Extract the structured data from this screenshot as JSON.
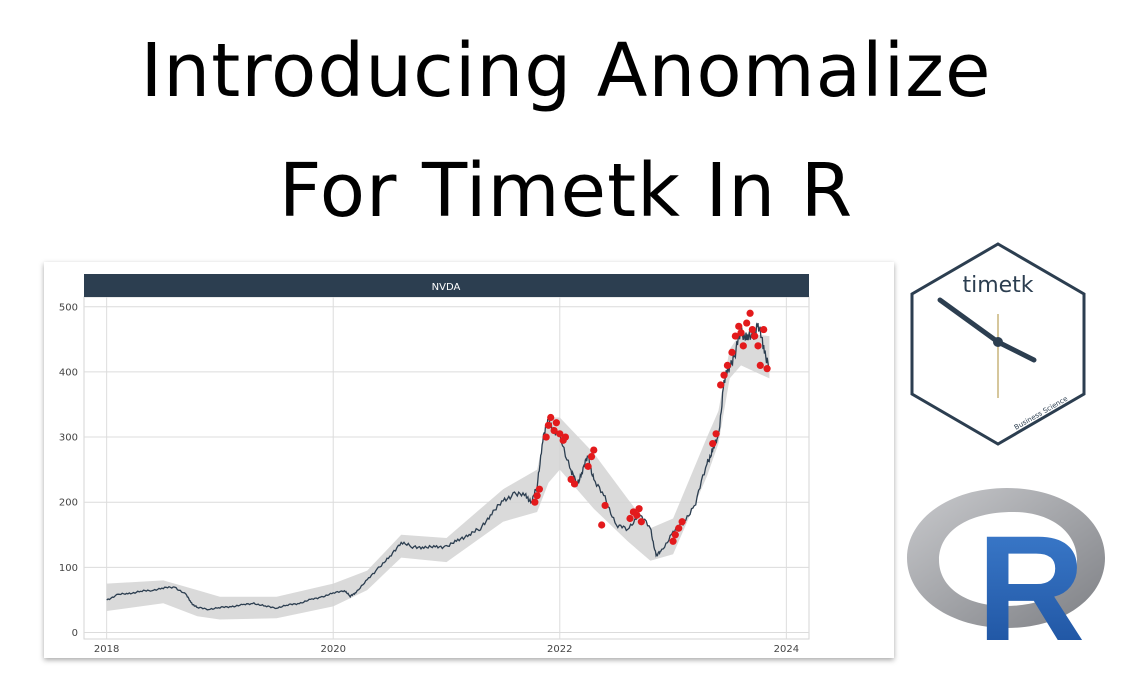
{
  "title": {
    "line1": "Introducing Anomalize",
    "line2": "For Timetk In R"
  },
  "logos": {
    "timetk_text": "timetk",
    "timetk_sub": "Business Science",
    "r_text": "R"
  },
  "colors": {
    "panel_strip": "#2c3e50",
    "line": "#2c3e50",
    "band": "#d3d3d3",
    "anomaly": "#e31a1c",
    "r_blue": "#1f5fb0",
    "r_gray": "#8e9095"
  },
  "chart_data": {
    "type": "line",
    "title": "NVDA",
    "xlabel": "",
    "ylabel": "",
    "xlim": [
      2018.0,
      2024.0
    ],
    "ylim": [
      0,
      510
    ],
    "x_ticks": [
      2018,
      2020,
      2022,
      2024
    ],
    "y_ticks": [
      0,
      100,
      200,
      300,
      400,
      500
    ],
    "x_tick_labels": [
      "2018",
      "2020",
      "2022",
      "2024"
    ],
    "y_tick_labels": [
      "0",
      "100",
      "200",
      "300",
      "400",
      "500"
    ],
    "grid": true,
    "legend": "none",
    "series": [
      {
        "x": [
          2018.0,
          2018.1,
          2018.2,
          2018.3,
          2018.4,
          2018.5,
          2018.6,
          2018.7,
          2018.75,
          2018.8,
          2018.9,
          2019.0,
          2019.1,
          2019.2,
          2019.3,
          2019.4,
          2019.5,
          2019.6,
          2019.7,
          2019.8,
          2019.9,
          2020.0,
          2020.1,
          2020.15,
          2020.2,
          2020.3,
          2020.4,
          2020.5,
          2020.6,
          2020.7,
          2020.8,
          2020.9,
          2021.0,
          2021.1,
          2021.2,
          2021.3,
          2021.4,
          2021.5,
          2021.6,
          2021.7,
          2021.75,
          2021.8,
          2021.85,
          2021.9,
          2021.95,
          2022.0,
          2022.1,
          2022.15,
          2022.2,
          2022.25,
          2022.3,
          2022.4,
          2022.5,
          2022.6,
          2022.7,
          2022.8,
          2022.85,
          2022.9,
          2023.0,
          2023.1,
          2023.2,
          2023.3,
          2023.35,
          2023.4,
          2023.45,
          2023.5,
          2023.55,
          2023.6,
          2023.65,
          2023.7,
          2023.75,
          2023.8,
          2023.85
        ],
        "y": [
          50,
          58,
          60,
          63,
          65,
          68,
          70,
          58,
          45,
          38,
          36,
          38,
          40,
          42,
          45,
          40,
          38,
          42,
          45,
          50,
          55,
          60,
          65,
          55,
          62,
          80,
          100,
          115,
          140,
          130,
          132,
          130,
          133,
          140,
          152,
          158,
          185,
          200,
          215,
          208,
          202,
          222,
          300,
          325,
          310,
          300,
          250,
          225,
          250,
          270,
          235,
          205,
          165,
          158,
          182,
          160,
          118,
          125,
          155,
          170,
          200,
          260,
          280,
          300,
          385,
          410,
          430,
          465,
          450,
          455,
          470,
          440,
          405
        ]
      }
    ],
    "band": {
      "x": [
        2018.0,
        2018.5,
        2018.8,
        2019.0,
        2019.5,
        2020.0,
        2020.3,
        2020.6,
        2021.0,
        2021.5,
        2021.8,
        2021.9,
        2022.0,
        2022.3,
        2022.6,
        2022.8,
        2023.0,
        2023.3,
        2023.4,
        2023.5,
        2023.6,
        2023.85
      ],
      "lower": [
        33,
        45,
        25,
        20,
        22,
        40,
        65,
        115,
        108,
        170,
        185,
        230,
        250,
        190,
        140,
        110,
        120,
        240,
        290,
        390,
        410,
        390
      ],
      "upper": [
        75,
        80,
        65,
        55,
        55,
        75,
        95,
        150,
        145,
        220,
        250,
        330,
        330,
        275,
        205,
        160,
        175,
        300,
        340,
        435,
        460,
        455
      ]
    },
    "anomalies": {
      "x": [
        2021.78,
        2021.8,
        2021.82,
        2021.88,
        2021.9,
        2021.92,
        2021.95,
        2021.97,
        2022.0,
        2022.03,
        2022.05,
        2022.1,
        2022.13,
        2022.25,
        2022.28,
        2022.3,
        2022.37,
        2022.4,
        2022.62,
        2022.65,
        2022.68,
        2022.7,
        2022.72,
        2023.0,
        2023.02,
        2023.05,
        2023.08,
        2023.35,
        2023.38,
        2023.42,
        2023.45,
        2023.48,
        2023.52,
        2023.55,
        2023.58,
        2023.6,
        2023.62,
        2023.65,
        2023.68,
        2023.7,
        2023.72,
        2023.75,
        2023.77,
        2023.8,
        2023.83
      ],
      "y": [
        200,
        210,
        220,
        300,
        318,
        330,
        310,
        322,
        305,
        295,
        300,
        235,
        228,
        255,
        270,
        280,
        165,
        195,
        175,
        185,
        180,
        190,
        170,
        140,
        150,
        160,
        170,
        290,
        305,
        380,
        395,
        410,
        430,
        455,
        470,
        460,
        440,
        475,
        490,
        465,
        455,
        440,
        410,
        465,
        405
      ]
    }
  }
}
